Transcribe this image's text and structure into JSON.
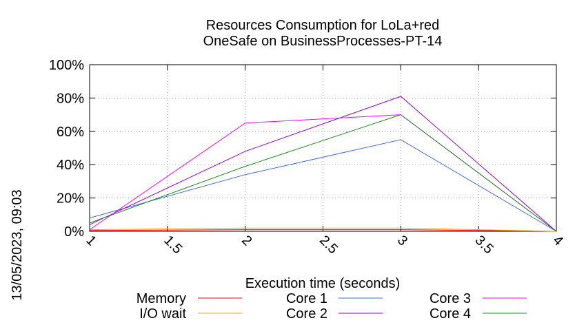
{
  "chart_data": {
    "type": "line",
    "title_line1": "Resources Consumption for LoLa+red",
    "title_line2": "OneSafe on BusinessProcesses-PT-14",
    "xlabel": "Execution time (seconds)",
    "ylabel": "",
    "side_label": "13/05/2023, 09:03",
    "xlim": [
      1,
      4
    ],
    "ylim": [
      0,
      100
    ],
    "x_ticks": [
      "1",
      "1.5",
      "2",
      "2.5",
      "3",
      "3.5",
      "4"
    ],
    "x_tick_values": [
      1,
      1.5,
      2,
      2.5,
      3,
      3.5,
      4
    ],
    "y_ticks": [
      "0%",
      "20%",
      "40%",
      "60%",
      "80%",
      "100%"
    ],
    "y_tick_values": [
      0,
      20,
      40,
      60,
      80,
      100
    ],
    "grid": true,
    "legend_position": "bottom",
    "x": [
      1,
      2,
      3,
      4
    ],
    "series": [
      {
        "name": "Memory",
        "color": "#ff0000",
        "values": [
          0.5,
          1,
          1,
          0
        ]
      },
      {
        "name": "I/O wait",
        "color": "#ffa500",
        "values": [
          1,
          2,
          2,
          0
        ]
      },
      {
        "name": "Core 1",
        "color": "#4169e1",
        "values": [
          8,
          34,
          55,
          0
        ]
      },
      {
        "name": "Core 2",
        "color": "#9400d3",
        "values": [
          4,
          48,
          81,
          0
        ]
      },
      {
        "name": "Core 3",
        "color": "#ff00ff",
        "values": [
          1,
          65,
          70,
          0
        ]
      },
      {
        "name": "Core 4",
        "color": "#228b22",
        "values": [
          5,
          39,
          70,
          0
        ]
      }
    ]
  }
}
